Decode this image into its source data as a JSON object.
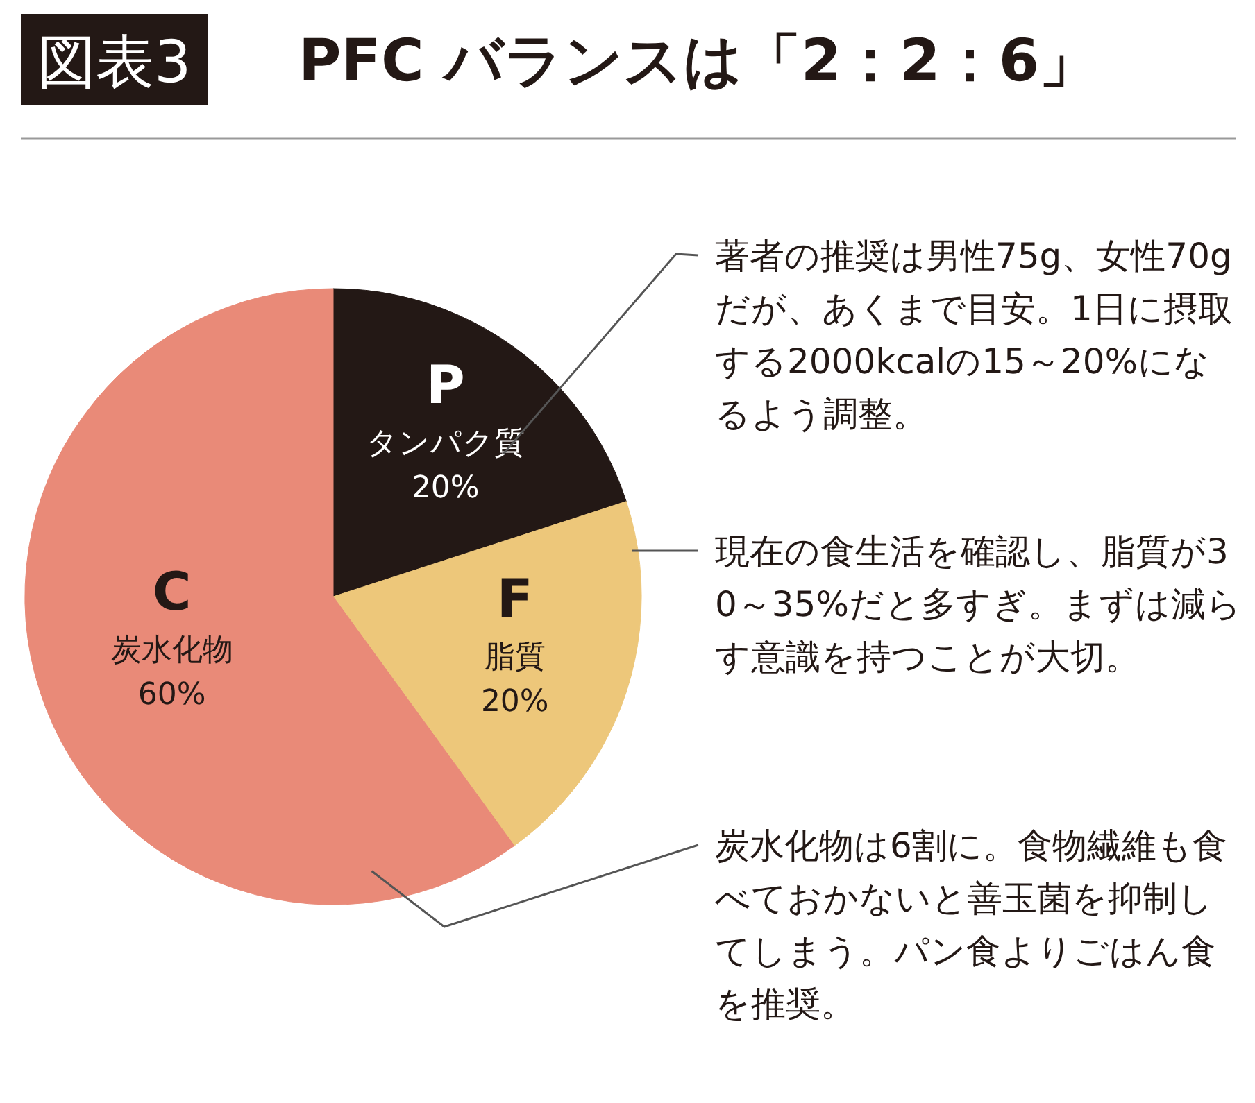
{
  "chart_data": {
    "type": "pie",
    "title": "PFC バランスは「2：2：6」",
    "categories": [
      "タンパク質",
      "脂質",
      "炭水化物"
    ],
    "values": [
      20,
      20,
      60
    ],
    "colors": [
      "#231815",
      "#edc77a",
      "#e98a78"
    ],
    "value_labels": [
      "20%",
      "20%",
      "60%"
    ],
    "legend": false,
    "annotations": [
      "図表3",
      {
        "text": "P",
        "x": "タンパク質"
      },
      {
        "text": "F",
        "x": "脂質"
      },
      {
        "text": "C",
        "x": "炭水化物"
      },
      {
        "text": "著者の推奨は男性75g、女性70gだが、あくまで目安。1日に摂取する2000kcalの15～20%になるよう調整。",
        "x": "タンパク質"
      },
      {
        "text": "現在の食生活を確認し、脂質が30～35%だと多すぎ。まずは減らす意識を持つことが大切。",
        "x": "脂質"
      },
      {
        "text": "炭水化物は6割に。食物繊維も食べておかないと善玉菌を抑制してしまう。パン食よりごはん食を推奨。",
        "x": "炭水化物"
      }
    ]
  }
}
